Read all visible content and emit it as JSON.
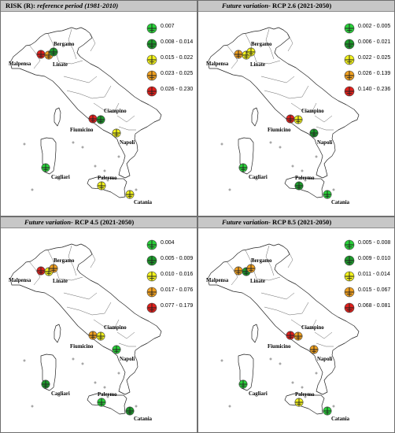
{
  "panels": [
    {
      "id": "reference",
      "title_prefix": "RISK (R): ",
      "title_italic": "reference period (1981-2010)",
      "title_suffix": "",
      "legend": [
        {
          "label": "0.007",
          "color": "#29d13a"
        },
        {
          "label": "0.008 - 0.014",
          "color": "#1c9a2b"
        },
        {
          "label": "0.015 - 0.022",
          "color": "#f2f21c"
        },
        {
          "label": "0.023 - 0.025",
          "color": "#f0a020"
        },
        {
          "label": "0.026 - 0.230",
          "color": "#e0201c"
        }
      ],
      "airports": [
        {
          "name": "Malpensa",
          "color": "#e0201c"
        },
        {
          "name": "Linate",
          "color": "#f0a020"
        },
        {
          "name": "Bergamo",
          "color": "#1c9a2b"
        },
        {
          "name": "Fiumicino",
          "color": "#e0201c"
        },
        {
          "name": "Ciampino",
          "color": "#1c9a2b"
        },
        {
          "name": "Napoli",
          "color": "#f2f21c"
        },
        {
          "name": "Cagliari",
          "color": "#29d13a"
        },
        {
          "name": "Palermo",
          "color": "#f2f21c"
        },
        {
          "name": "Catania",
          "color": "#f2f21c"
        }
      ]
    },
    {
      "id": "rcp26",
      "title_prefix": "",
      "title_italic": "Future variation",
      "title_suffix": "- RCP 2.6 (2021-2050)",
      "legend": [
        {
          "label": "0.002 - 0.005",
          "color": "#29d13a"
        },
        {
          "label": "0.006 - 0.021",
          "color": "#1c9a2b"
        },
        {
          "label": "0.022 - 0.025",
          "color": "#f2f21c"
        },
        {
          "label": "0.026 - 0.139",
          "color": "#f0a020"
        },
        {
          "label": "0.140 - 0.236",
          "color": "#e0201c"
        }
      ],
      "airports": [
        {
          "name": "Malpensa",
          "color": "#f0a020"
        },
        {
          "name": "Linate",
          "color": "#f2f21c"
        },
        {
          "name": "Bergamo",
          "color": "#f2f21c"
        },
        {
          "name": "Fiumicino",
          "color": "#e0201c"
        },
        {
          "name": "Ciampino",
          "color": "#f2f21c"
        },
        {
          "name": "Napoli",
          "color": "#1c9a2b"
        },
        {
          "name": "Cagliari",
          "color": "#29d13a"
        },
        {
          "name": "Palermo",
          "color": "#1c9a2b"
        },
        {
          "name": "Catania",
          "color": "#29d13a"
        }
      ]
    },
    {
      "id": "rcp45",
      "title_prefix": "",
      "title_italic": "Future variation",
      "title_suffix": "- RCP 4.5 (2021-2050)",
      "legend": [
        {
          "label": "0.004",
          "color": "#29d13a"
        },
        {
          "label": "0.005 - 0.009",
          "color": "#1c9a2b"
        },
        {
          "label": "0.010 - 0.016",
          "color": "#f2f21c"
        },
        {
          "label": "0.017 - 0.076",
          "color": "#f0a020"
        },
        {
          "label": "0.077 - 0.179",
          "color": "#e0201c"
        }
      ],
      "airports": [
        {
          "name": "Malpensa",
          "color": "#e0201c"
        },
        {
          "name": "Linate",
          "color": "#f2f21c"
        },
        {
          "name": "Bergamo",
          "color": "#f0a020"
        },
        {
          "name": "Fiumicino",
          "color": "#f0a020"
        },
        {
          "name": "Ciampino",
          "color": "#f2f21c"
        },
        {
          "name": "Napoli",
          "color": "#29d13a"
        },
        {
          "name": "Cagliari",
          "color": "#1c9a2b"
        },
        {
          "name": "Palermo",
          "color": "#29d13a"
        },
        {
          "name": "Catania",
          "color": "#1c9a2b"
        }
      ]
    },
    {
      "id": "rcp85",
      "title_prefix": "",
      "title_italic": "Future variation",
      "title_suffix": "- RCP 8.5 (2021-2050)",
      "legend": [
        {
          "label": "0.005 - 0.008",
          "color": "#29d13a"
        },
        {
          "label": "0.009 - 0.010",
          "color": "#1c9a2b"
        },
        {
          "label": "0.011 - 0.014",
          "color": "#f2f21c"
        },
        {
          "label": "0.015 - 0.067",
          "color": "#f0a020"
        },
        {
          "label": "0.068 - 0.081",
          "color": "#e0201c"
        }
      ],
      "airports": [
        {
          "name": "Malpensa",
          "color": "#f0a020"
        },
        {
          "name": "Linate",
          "color": "#1c9a2b"
        },
        {
          "name": "Bergamo",
          "color": "#f0a020"
        },
        {
          "name": "Fiumicino",
          "color": "#e0201c"
        },
        {
          "name": "Ciampino",
          "color": "#f0a020"
        },
        {
          "name": "Napoli",
          "color": "#f0a020"
        },
        {
          "name": "Cagliari",
          "color": "#29d13a"
        },
        {
          "name": "Palermo",
          "color": "#f2f21c"
        },
        {
          "name": "Catania",
          "color": "#29d13a"
        }
      ]
    }
  ]
}
